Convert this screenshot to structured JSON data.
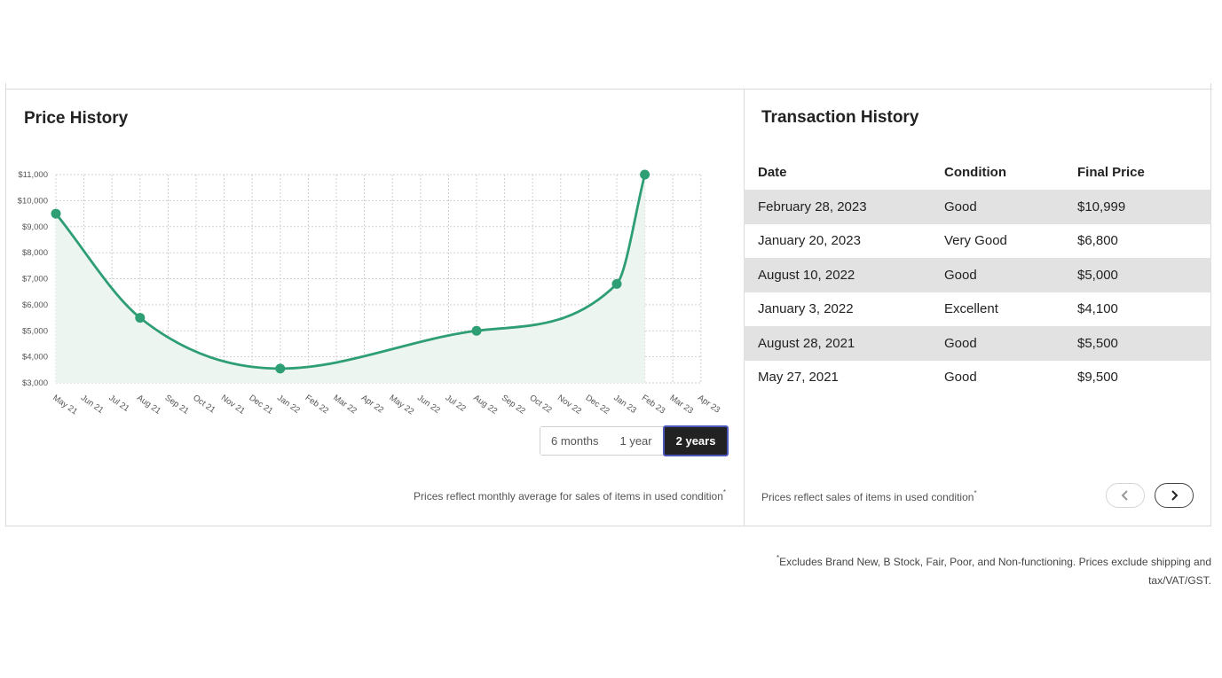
{
  "price_history": {
    "title": "Price History",
    "ranges": [
      "6 months",
      "1 year",
      "2 years"
    ],
    "active_range": "2 years",
    "note": "Prices reflect monthly average for sales of items in used condition",
    "note_marker": "*"
  },
  "chart_data": {
    "type": "area",
    "title": "",
    "xlabel": "",
    "ylabel": "",
    "categories": [
      "May 21",
      "Jun 21",
      "Jul 21",
      "Aug 21",
      "Sep 21",
      "Oct 21",
      "Nov 21",
      "Dec 21",
      "Jan 22",
      "Feb 22",
      "Mar 22",
      "Apr 22",
      "May 22",
      "Jun 22",
      "Jul 22",
      "Aug 22",
      "Sep 22",
      "Oct 22",
      "Nov 22",
      "Dec 22",
      "Jan 23",
      "Feb 23",
      "Mar 23",
      "Apr 23"
    ],
    "y_ticks": [
      "$3,000",
      "$4,000",
      "$5,000",
      "$6,000",
      "$7,000",
      "$8,000",
      "$9,000",
      "$10,000",
      "$11,000"
    ],
    "ylim": [
      3000,
      11000
    ],
    "grid": true,
    "color": "#2e9e75",
    "fill_color": "#edf5f1",
    "series": [
      {
        "points": [
          {
            "x": "May 21",
            "y": 9500
          },
          {
            "x": "Aug 21",
            "y": 5500
          },
          {
            "x": "Jan 22",
            "y": 3550
          },
          {
            "x": "Aug 22",
            "y": 5000
          },
          {
            "x": "Jan 23",
            "y": 6800
          },
          {
            "x": "Feb 23",
            "y": 10999
          }
        ]
      }
    ]
  },
  "transactions": {
    "title": "Transaction History",
    "columns": [
      "Date",
      "Condition",
      "Final Price"
    ],
    "rows": [
      {
        "date": "February 28, 2023",
        "condition": "Good",
        "price": "$10,999"
      },
      {
        "date": "January 20, 2023",
        "condition": "Very Good",
        "price": "$6,800"
      },
      {
        "date": "August 10, 2022",
        "condition": "Good",
        "price": "$5,000"
      },
      {
        "date": "January 3, 2022",
        "condition": "Excellent",
        "price": "$4,100"
      },
      {
        "date": "August 28, 2021",
        "condition": "Good",
        "price": "$5,500"
      },
      {
        "date": "May 27, 2021",
        "condition": "Good",
        "price": "$9,500"
      }
    ],
    "note": "Prices reflect sales of items in used condition",
    "note_marker": "*",
    "pager": {
      "prev_icon": "chevron-left-icon",
      "next_icon": "chevron-right-icon"
    }
  },
  "footnote": {
    "marker": "*",
    "text": "Excludes Brand New, B Stock, Fair, Poor, and Non-functioning. Prices exclude shipping and tax/VAT/GST."
  }
}
